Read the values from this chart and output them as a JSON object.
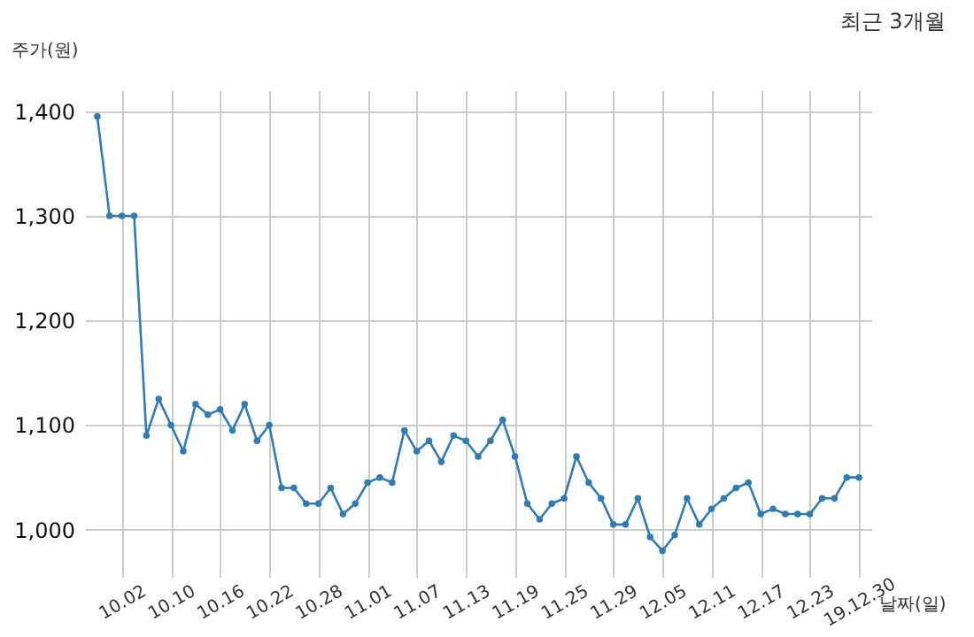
{
  "chart_data": {
    "type": "line",
    "title": "최근 3개월",
    "xlabel": "날짜(일)",
    "ylabel": "주가(원)",
    "categories": [
      null,
      null,
      "10.02",
      null,
      null,
      null,
      "10.10",
      null,
      null,
      null,
      "10.16",
      null,
      null,
      null,
      "10.22",
      null,
      null,
      null,
      "10.28",
      null,
      null,
      null,
      "11.01",
      null,
      null,
      null,
      "11.07",
      null,
      null,
      null,
      "11.13",
      null,
      null,
      null,
      "11.19",
      null,
      null,
      null,
      "11.25",
      null,
      null,
      null,
      "11.29",
      null,
      null,
      null,
      "12.05",
      null,
      null,
      null,
      "12.11",
      null,
      null,
      null,
      "12.17",
      null,
      null,
      null,
      "12.23",
      null,
      null,
      null,
      "19.12.30"
    ],
    "values": [
      1395,
      1300,
      1300,
      1300,
      1090,
      1125,
      1100,
      1075,
      1120,
      1110,
      1115,
      1095,
      1120,
      1085,
      1100,
      1040,
      1040,
      1025,
      1025,
      1040,
      1015,
      1025,
      1045,
      1050,
      1045,
      1095,
      1075,
      1085,
      1065,
      1090,
      1085,
      1070,
      1085,
      1105,
      1070,
      1025,
      1010,
      1025,
      1030,
      1070,
      1045,
      1030,
      1005,
      1005,
      1030,
      993,
      980,
      995,
      1030,
      1005,
      1020,
      1030,
      1040,
      1045,
      1015,
      1020,
      1015,
      1015,
      1015,
      1030,
      1030,
      1050,
      1050
    ],
    "color": "#2f7bb3",
    "ylim": [
      955,
      1420
    ],
    "yticks": [
      {
        "value": 1000,
        "label": "1,000"
      },
      {
        "value": 1100,
        "label": "1,100"
      },
      {
        "value": 1200,
        "label": "1,200"
      },
      {
        "value": 1300,
        "label": "1,300"
      },
      {
        "value": 1400,
        "label": "1,400"
      }
    ],
    "grid": true,
    "marker": "circle"
  }
}
